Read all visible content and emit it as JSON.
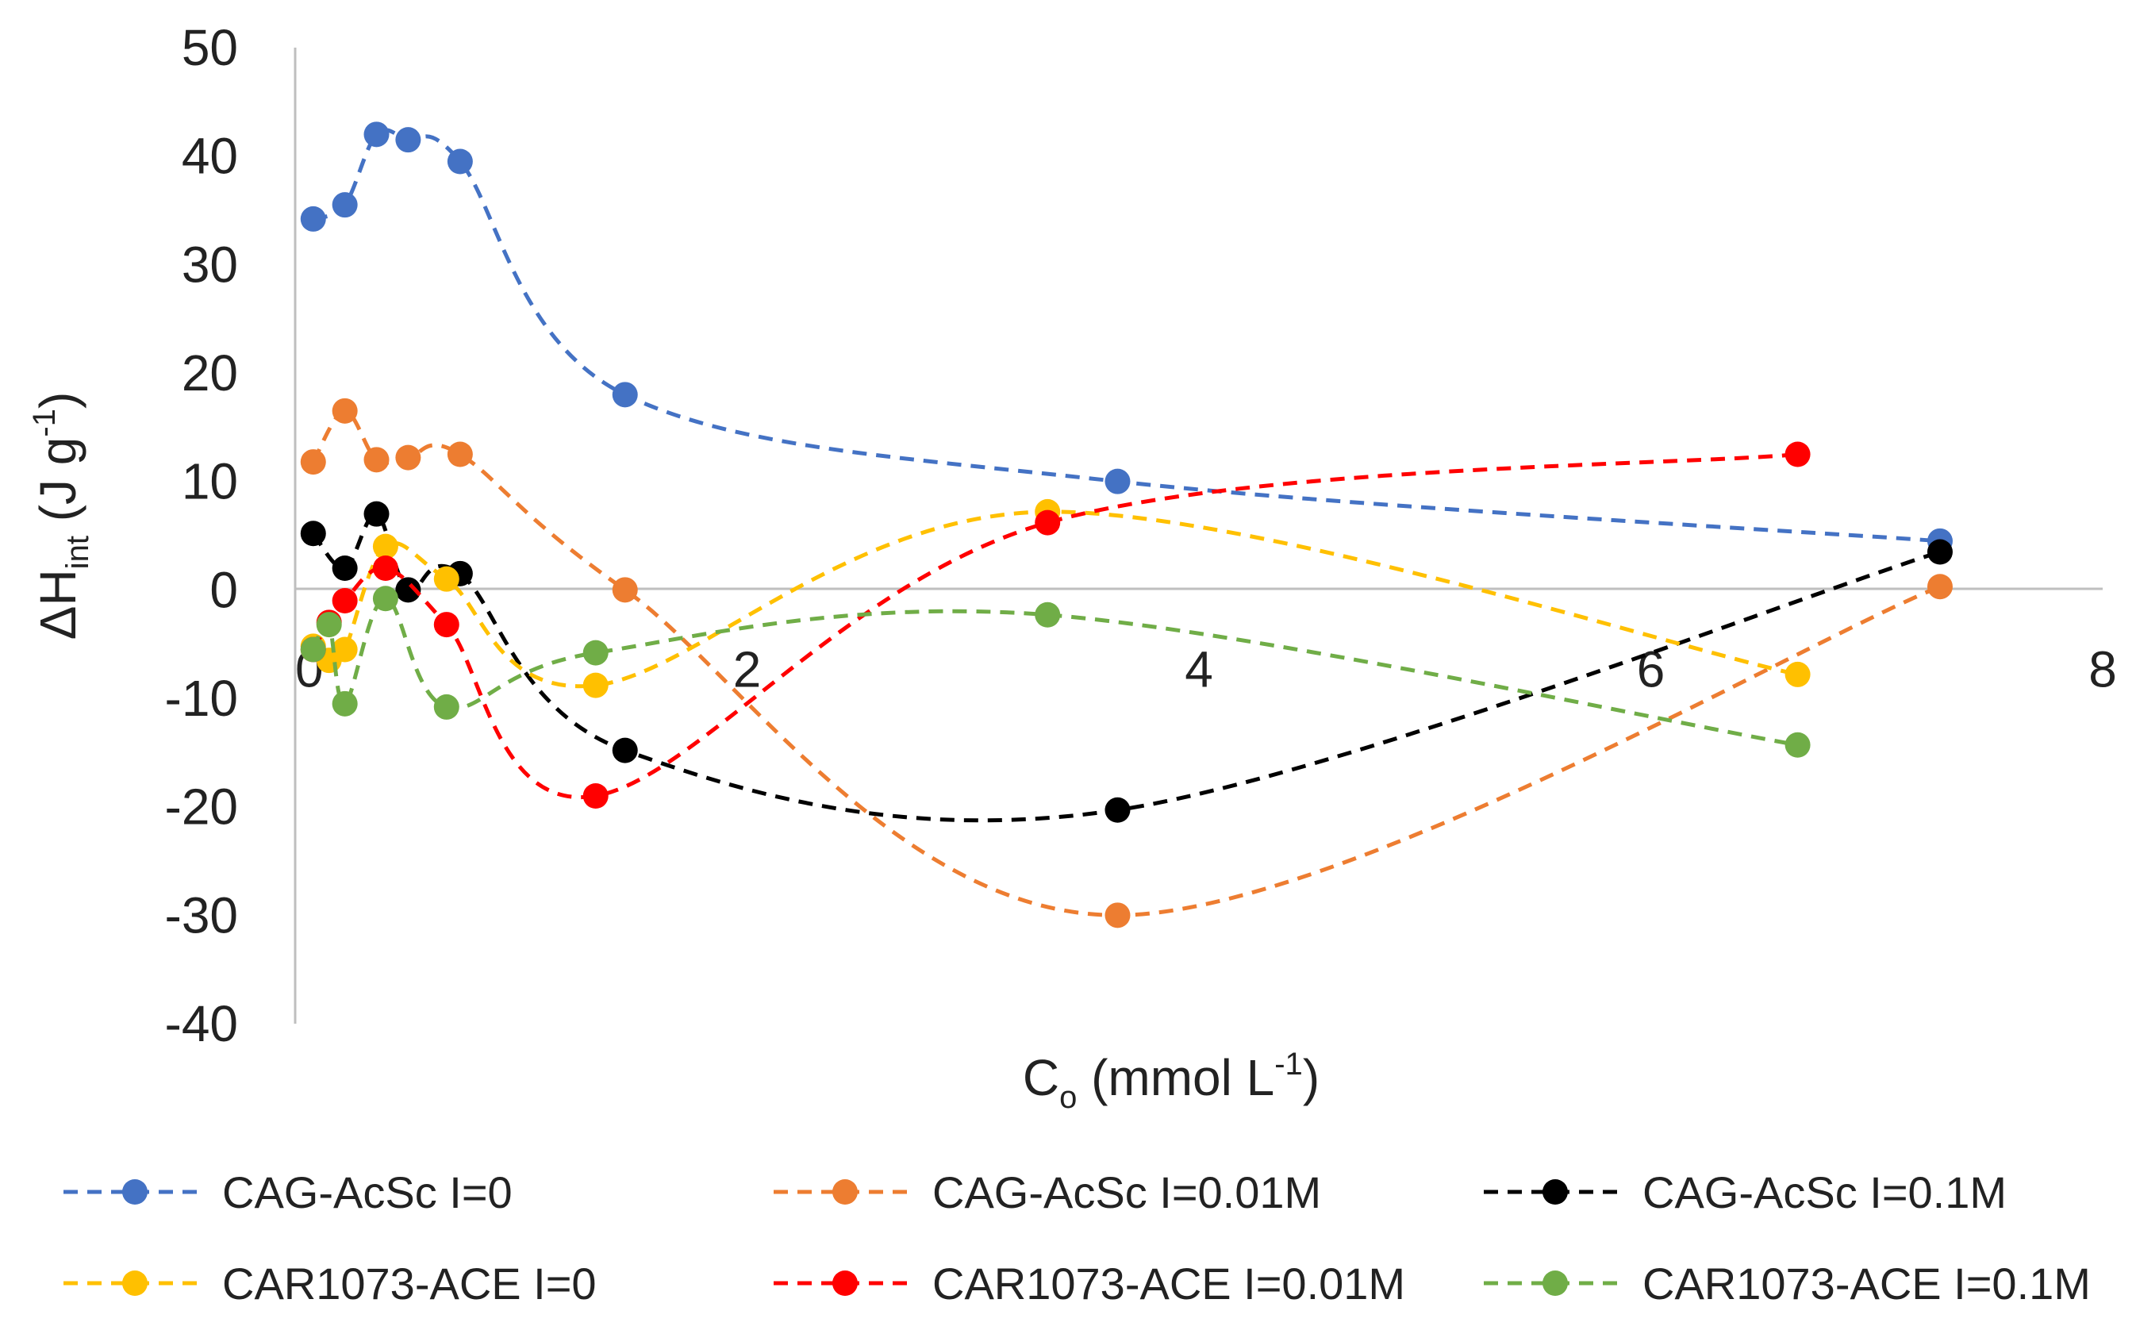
{
  "chart_data": {
    "type": "line",
    "title": "",
    "xlabel": {
      "main": "C",
      "sub": "o",
      "pre": " (mmol L",
      "sup": "-1",
      "post": ")"
    },
    "ylabel": {
      "main": "ΔH",
      "sub": "int",
      "pre": " (J g",
      "sup": "-1",
      "post": ")"
    },
    "xlim": [
      0,
      8
    ],
    "ylim": [
      -40,
      50
    ],
    "xticks": [
      0,
      2,
      4,
      6,
      8
    ],
    "xtick_labels": [
      "0",
      "2",
      "4",
      "6",
      "8"
    ],
    "yticks": [
      50,
      40,
      30,
      20,
      10,
      0,
      -10,
      -20,
      -30,
      -40
    ],
    "ytick_labels": [
      "50",
      "40",
      "30",
      "20",
      "10",
      "0",
      "-10",
      "-20",
      "-30",
      "-40"
    ],
    "grid": false,
    "legend_position": "bottom",
    "line_style": "dashed-smooth",
    "series": [
      {
        "name": "CAG-AcSc I=0",
        "color": "#4472C4",
        "x": [
          0.08,
          0.22,
          0.36,
          0.5,
          0.73,
          1.46,
          3.64,
          7.28
        ],
        "y": [
          34.2,
          35.5,
          42.0,
          41.5,
          39.5,
          18.0,
          10.0,
          4.5
        ]
      },
      {
        "name": "CAG-AcSc I=0.01M",
        "color": "#ED7D31",
        "x": [
          0.08,
          0.22,
          0.36,
          0.5,
          0.73,
          1.46,
          3.64,
          7.28
        ],
        "y": [
          11.8,
          16.5,
          12.0,
          12.2,
          12.5,
          0.0,
          -30.0,
          0.3
        ]
      },
      {
        "name": "CAG-AcSc I=0.1M",
        "color": "#000000",
        "x": [
          0.08,
          0.22,
          0.36,
          0.5,
          0.73,
          1.46,
          3.64,
          7.28
        ],
        "y": [
          5.2,
          2.0,
          7.0,
          0.0,
          1.5,
          -14.8,
          -20.3,
          3.5
        ]
      },
      {
        "name": "CAR1073-ACE I=0",
        "color": "#FFC000",
        "x": [
          0.08,
          0.15,
          0.22,
          0.4,
          0.67,
          1.33,
          3.33,
          6.65
        ],
        "y": [
          -5.2,
          -6.5,
          -5.5,
          4.0,
          1.0,
          -8.8,
          7.2,
          -7.8
        ]
      },
      {
        "name": "CAR1073-ACE I=0.01M",
        "color": "#FF0000",
        "x": [
          0.08,
          0.15,
          0.22,
          0.4,
          0.67,
          1.33,
          3.33,
          6.65
        ],
        "y": [
          -5.5,
          -3.0,
          -1.0,
          2.0,
          -3.2,
          -19.0,
          6.2,
          12.5
        ]
      },
      {
        "name": "CAR1073-ACE I=0.1M",
        "color": "#70AD47",
        "x": [
          0.08,
          0.15,
          0.22,
          0.4,
          0.67,
          1.33,
          3.33,
          6.65
        ],
        "y": [
          -5.5,
          -3.2,
          -10.5,
          -0.8,
          -10.8,
          -5.8,
          -2.3,
          -14.3
        ]
      }
    ]
  }
}
